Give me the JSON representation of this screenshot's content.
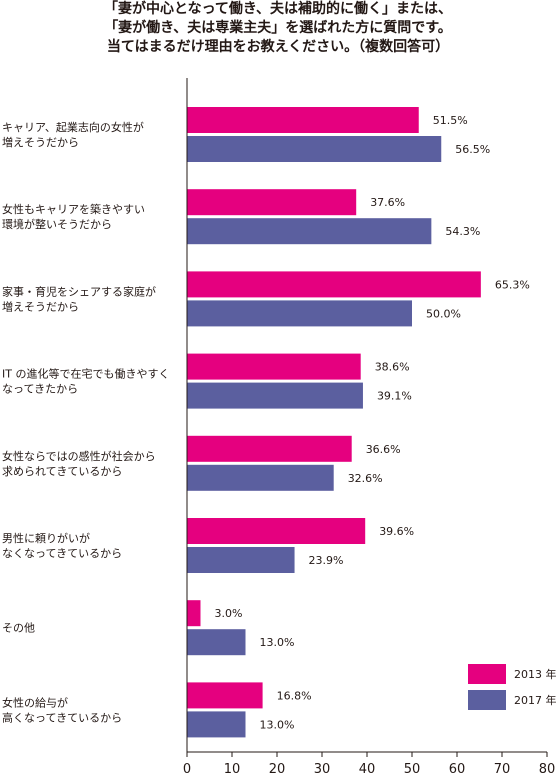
{
  "title_lines": [
    "「妻が中心となって働き、夫は補助的に働く」または、",
    "「妻が働き、夫は専業主夫」を選ばれた方に質問です。",
    "当てはまるだけ理由をお教えください。（複数回答可）"
  ],
  "chart_data": {
    "type": "bar",
    "orientation": "horizontal",
    "title": "「妻が中心となって働き、夫は補助的に働く」または、「妻が働き、夫は専業主夫」を選ばれた方に質問です。当てはまるだけ理由をお教えください。（複数回答可）",
    "categories": [
      [
        "キャリア、起業志向の女性が",
        "増えそうだから"
      ],
      [
        "女性もキャリアを築きやすい",
        "環境が整いそうだから"
      ],
      [
        "家事・育児をシェアする家庭が",
        "増えそうだから"
      ],
      [
        "IT の進化等で在宅でも働きやすく",
        "なってきたから"
      ],
      [
        "女性ならではの感性が社会から",
        "求められてきているから"
      ],
      [
        "男性に頼りがいが",
        "なくなってきているから"
      ],
      [
        "その他"
      ],
      [
        "女性の給与が",
        "高くなってきているから"
      ]
    ],
    "series": [
      {
        "name": "2013 年",
        "color": "#e5007f",
        "values": [
          51.5,
          37.6,
          65.3,
          38.6,
          36.6,
          39.6,
          3.0,
          16.8
        ]
      },
      {
        "name": "2017 年",
        "color": "#5b5f9f",
        "values": [
          56.5,
          54.3,
          50.0,
          39.1,
          32.6,
          23.9,
          13.0,
          13.0
        ]
      }
    ],
    "value_labels": [
      [
        "51.5%",
        "37.6%",
        "65.3%",
        "38.6%",
        "36.6%",
        "39.6%",
        "3.0%",
        "16.8%"
      ],
      [
        "56.5%",
        "54.3%",
        "50.0%",
        "39.1%",
        "32.6%",
        "23.9%",
        "13.0%",
        "13.0%"
      ]
    ],
    "xlim": [
      0,
      80
    ],
    "xticks": [
      0,
      10,
      20,
      30,
      40,
      50,
      60,
      70,
      80
    ],
    "xlabel": "",
    "ylabel": "",
    "grid": false,
    "legend_position": "bottom-right"
  }
}
